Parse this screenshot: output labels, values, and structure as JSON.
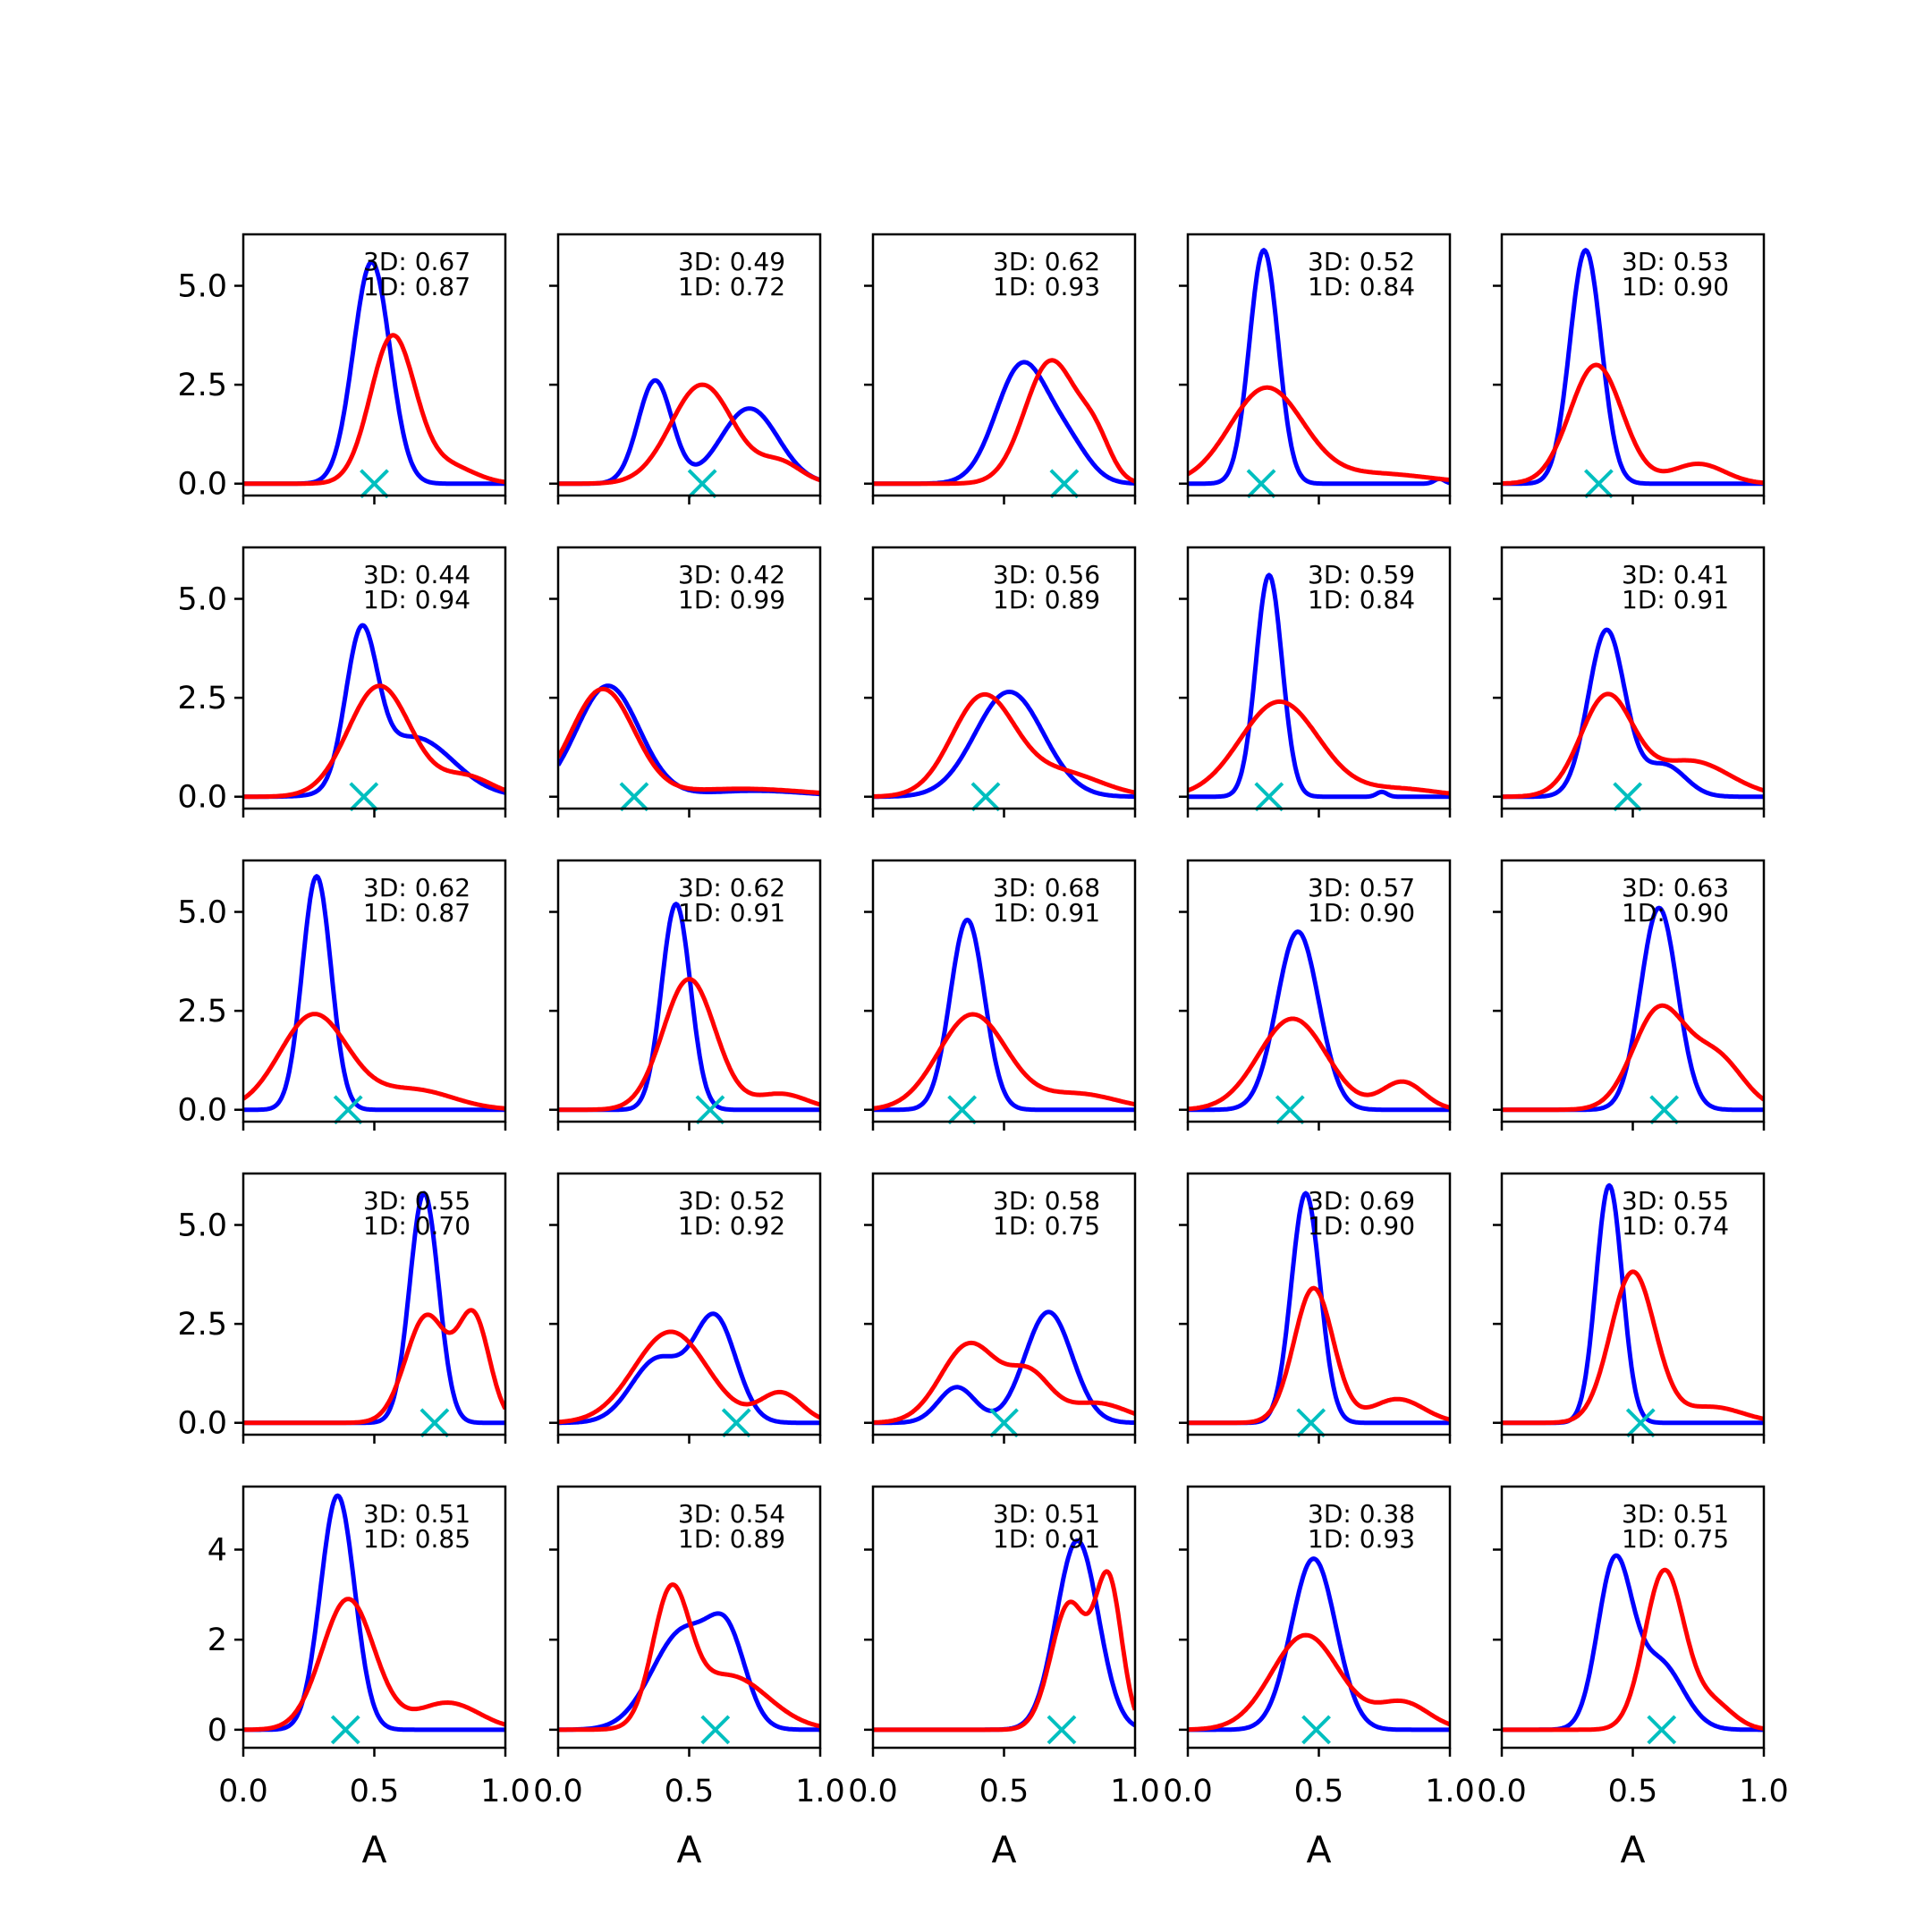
{
  "chart_data": {
    "type": "line",
    "layout": {
      "rows": 5,
      "cols": 5
    },
    "xlabel": "A",
    "xlim": [
      0,
      1
    ],
    "xticks": [
      "0.0",
      "0.5",
      "1.0"
    ],
    "row_yaxes": [
      {
        "ylim": [
          -0.3,
          6.3
        ],
        "ticks": [
          0,
          2.5,
          5
        ],
        "tick_labels": [
          "0.0",
          "2.5",
          "5.0"
        ]
      },
      {
        "ylim": [
          -0.3,
          6.3
        ],
        "ticks": [
          0,
          2.5,
          5
        ],
        "tick_labels": [
          "0.0",
          "2.5",
          "5.0"
        ]
      },
      {
        "ylim": [
          -0.3,
          6.3
        ],
        "ticks": [
          0,
          2.5,
          5
        ],
        "tick_labels": [
          "0.0",
          "2.5",
          "5.0"
        ]
      },
      {
        "ylim": [
          -0.3,
          6.3
        ],
        "ticks": [
          0,
          2.5,
          5
        ],
        "tick_labels": [
          "0.0",
          "2.5",
          "5.0"
        ]
      },
      {
        "ylim": [
          -0.4,
          5.4
        ],
        "ticks": [
          0,
          2,
          4
        ],
        "tick_labels": [
          "0",
          "2",
          "4"
        ]
      }
    ],
    "colors": {
      "blue": "#0000ff",
      "red": "#ff0000",
      "marker": "#00bfbf"
    },
    "panels": [
      {
        "label_3d": "3D: 0.67",
        "label_1d": "1D: 0.87",
        "marker_x": 0.5,
        "blue": [
          {
            "mu": 0.49,
            "sd": 0.07,
            "h": 5.6
          }
        ],
        "red": [
          {
            "mu": 0.57,
            "sd": 0.085,
            "h": 3.7
          },
          {
            "mu": 0.78,
            "sd": 0.1,
            "h": 0.45
          }
        ]
      },
      {
        "label_3d": "3D: 0.49",
        "label_1d": "1D: 0.72",
        "marker_x": 0.55,
        "blue": [
          {
            "mu": 0.37,
            "sd": 0.065,
            "h": 2.6
          },
          {
            "mu": 0.73,
            "sd": 0.11,
            "h": 1.9
          }
        ],
        "red": [
          {
            "mu": 0.55,
            "sd": 0.12,
            "h": 2.5
          },
          {
            "mu": 0.85,
            "sd": 0.08,
            "h": 0.5
          }
        ]
      },
      {
        "label_3d": "3D: 0.62",
        "label_1d": "1D: 0.93",
        "marker_x": 0.73,
        "blue": [
          {
            "mu": 0.57,
            "sd": 0.1,
            "h": 3.0
          },
          {
            "mu": 0.75,
            "sd": 0.08,
            "h": 0.8
          }
        ],
        "red": [
          {
            "mu": 0.68,
            "sd": 0.1,
            "h": 3.1
          },
          {
            "mu": 0.85,
            "sd": 0.06,
            "h": 0.9
          }
        ]
      },
      {
        "label_3d": "3D: 0.52",
        "label_1d": "1D: 0.84",
        "marker_x": 0.28,
        "blue": [
          {
            "mu": 0.29,
            "sd": 0.055,
            "h": 5.9
          },
          {
            "mu": 0.96,
            "sd": 0.02,
            "h": 0.12
          }
        ],
        "red": [
          {
            "mu": 0.3,
            "sd": 0.14,
            "h": 2.4
          },
          {
            "mu": 0.72,
            "sd": 0.2,
            "h": 0.25
          }
        ]
      },
      {
        "label_3d": "3D: 0.53",
        "label_1d": "1D: 0.90",
        "marker_x": 0.37,
        "blue": [
          {
            "mu": 0.32,
            "sd": 0.06,
            "h": 5.9
          }
        ],
        "red": [
          {
            "mu": 0.36,
            "sd": 0.1,
            "h": 3.0
          },
          {
            "mu": 0.75,
            "sd": 0.1,
            "h": 0.5
          }
        ]
      },
      {
        "label_3d": "3D: 0.44",
        "label_1d": "1D: 0.94",
        "marker_x": 0.46,
        "blue": [
          {
            "mu": 0.45,
            "sd": 0.06,
            "h": 3.7
          },
          {
            "mu": 0.65,
            "sd": 0.15,
            "h": 1.5
          }
        ],
        "red": [
          {
            "mu": 0.52,
            "sd": 0.12,
            "h": 2.8
          },
          {
            "mu": 0.85,
            "sd": 0.1,
            "h": 0.5
          }
        ]
      },
      {
        "label_3d": "3D: 0.42",
        "label_1d": "1D: 0.99",
        "marker_x": 0.29,
        "blue": [
          {
            "mu": 0.19,
            "sd": 0.12,
            "h": 2.8
          },
          {
            "mu": 0.75,
            "sd": 0.2,
            "h": 0.15
          }
        ],
        "red": [
          {
            "mu": 0.17,
            "sd": 0.12,
            "h": 2.7
          },
          {
            "mu": 0.7,
            "sd": 0.25,
            "h": 0.2
          }
        ]
      },
      {
        "label_3d": "3D: 0.56",
        "label_1d": "1D: 0.89",
        "marker_x": 0.43,
        "blue": [
          {
            "mu": 0.52,
            "sd": 0.13,
            "h": 2.65
          }
        ],
        "red": [
          {
            "mu": 0.42,
            "sd": 0.12,
            "h": 2.5
          },
          {
            "mu": 0.72,
            "sd": 0.15,
            "h": 0.6
          }
        ]
      },
      {
        "label_3d": "3D: 0.59",
        "label_1d": "1D: 0.84",
        "marker_x": 0.31,
        "blue": [
          {
            "mu": 0.31,
            "sd": 0.05,
            "h": 5.6
          },
          {
            "mu": 0.74,
            "sd": 0.02,
            "h": 0.12
          }
        ],
        "red": [
          {
            "mu": 0.35,
            "sd": 0.15,
            "h": 2.4
          },
          {
            "mu": 0.8,
            "sd": 0.15,
            "h": 0.2
          }
        ]
      },
      {
        "label_3d": "3D: 0.41",
        "label_1d": "1D: 0.91",
        "marker_x": 0.48,
        "blue": [
          {
            "mu": 0.4,
            "sd": 0.07,
            "h": 4.2
          },
          {
            "mu": 0.62,
            "sd": 0.08,
            "h": 0.8
          }
        ],
        "red": [
          {
            "mu": 0.4,
            "sd": 0.1,
            "h": 2.5
          },
          {
            "mu": 0.72,
            "sd": 0.15,
            "h": 0.9
          }
        ]
      },
      {
        "label_3d": "3D: 0.62",
        "label_1d": "1D: 0.87",
        "marker_x": 0.4,
        "blue": [
          {
            "mu": 0.28,
            "sd": 0.055,
            "h": 5.9
          }
        ],
        "red": [
          {
            "mu": 0.27,
            "sd": 0.13,
            "h": 2.4
          },
          {
            "mu": 0.65,
            "sd": 0.15,
            "h": 0.5
          }
        ]
      },
      {
        "label_3d": "3D: 0.62",
        "label_1d": "1D: 0.91",
        "marker_x": 0.58,
        "blue": [
          {
            "mu": 0.45,
            "sd": 0.055,
            "h": 5.2
          }
        ],
        "red": [
          {
            "mu": 0.5,
            "sd": 0.1,
            "h": 3.3
          },
          {
            "mu": 0.85,
            "sd": 0.1,
            "h": 0.4
          }
        ]
      },
      {
        "label_3d": "3D: 0.68",
        "label_1d": "1D: 0.91",
        "marker_x": 0.34,
        "blue": [
          {
            "mu": 0.36,
            "sd": 0.065,
            "h": 4.8
          }
        ],
        "red": [
          {
            "mu": 0.38,
            "sd": 0.13,
            "h": 2.4
          },
          {
            "mu": 0.78,
            "sd": 0.15,
            "h": 0.4
          }
        ]
      },
      {
        "label_3d": "3D: 0.57",
        "label_1d": "1D: 0.90",
        "marker_x": 0.39,
        "blue": [
          {
            "mu": 0.42,
            "sd": 0.08,
            "h": 4.5
          }
        ],
        "red": [
          {
            "mu": 0.4,
            "sd": 0.13,
            "h": 2.3
          },
          {
            "mu": 0.82,
            "sd": 0.08,
            "h": 0.7
          }
        ]
      },
      {
        "label_3d": "3D: 0.63",
        "label_1d": "1D: 0.90",
        "marker_x": 0.62,
        "blue": [
          {
            "mu": 0.6,
            "sd": 0.07,
            "h": 5.1
          }
        ],
        "red": [
          {
            "mu": 0.6,
            "sd": 0.1,
            "h": 2.5
          },
          {
            "mu": 0.82,
            "sd": 0.1,
            "h": 1.3
          }
        ]
      },
      {
        "label_3d": "3D: 0.55",
        "label_1d": "1D: 0.70",
        "marker_x": 0.73,
        "blue": [
          {
            "mu": 0.69,
            "sd": 0.055,
            "h": 5.8
          }
        ],
        "red": [
          {
            "mu": 0.7,
            "sd": 0.08,
            "h": 2.7
          },
          {
            "mu": 0.88,
            "sd": 0.06,
            "h": 2.6
          }
        ]
      },
      {
        "label_3d": "3D: 0.52",
        "label_1d": "1D: 0.92",
        "marker_x": 0.68,
        "blue": [
          {
            "mu": 0.38,
            "sd": 0.1,
            "h": 1.6
          },
          {
            "mu": 0.6,
            "sd": 0.08,
            "h": 2.6
          }
        ],
        "red": [
          {
            "mu": 0.43,
            "sd": 0.14,
            "h": 2.3
          },
          {
            "mu": 0.85,
            "sd": 0.08,
            "h": 0.75
          }
        ]
      },
      {
        "label_3d": "3D: 0.58",
        "label_1d": "1D: 0.75",
        "marker_x": 0.5,
        "blue": [
          {
            "mu": 0.32,
            "sd": 0.07,
            "h": 0.9
          },
          {
            "mu": 0.67,
            "sd": 0.09,
            "h": 2.8
          }
        ],
        "red": [
          {
            "mu": 0.37,
            "sd": 0.11,
            "h": 2.0
          },
          {
            "mu": 0.6,
            "sd": 0.08,
            "h": 1.1
          },
          {
            "mu": 0.85,
            "sd": 0.12,
            "h": 0.5
          }
        ]
      },
      {
        "label_3d": "3D: 0.69",
        "label_1d": "1D: 0.90",
        "marker_x": 0.47,
        "blue": [
          {
            "mu": 0.45,
            "sd": 0.055,
            "h": 5.8
          }
        ],
        "red": [
          {
            "mu": 0.48,
            "sd": 0.075,
            "h": 3.4
          },
          {
            "mu": 0.8,
            "sd": 0.1,
            "h": 0.6
          }
        ]
      },
      {
        "label_3d": "3D: 0.55",
        "label_1d": "1D: 0.74",
        "marker_x": 0.53,
        "blue": [
          {
            "mu": 0.41,
            "sd": 0.05,
            "h": 6.0
          }
        ],
        "red": [
          {
            "mu": 0.5,
            "sd": 0.085,
            "h": 3.8
          },
          {
            "mu": 0.8,
            "sd": 0.12,
            "h": 0.4
          }
        ]
      },
      {
        "label_3d": "3D: 0.51",
        "label_1d": "1D: 0.85",
        "marker_x": 0.39,
        "blue": [
          {
            "mu": 0.36,
            "sd": 0.065,
            "h": 5.2
          }
        ],
        "red": [
          {
            "mu": 0.4,
            "sd": 0.1,
            "h": 2.9
          },
          {
            "mu": 0.78,
            "sd": 0.12,
            "h": 0.6
          }
        ]
      },
      {
        "label_3d": "3D: 0.54",
        "label_1d": "1D: 0.89",
        "marker_x": 0.6,
        "blue": [
          {
            "mu": 0.48,
            "sd": 0.12,
            "h": 2.2
          },
          {
            "mu": 0.65,
            "sd": 0.07,
            "h": 1.6
          }
        ],
        "red": [
          {
            "mu": 0.43,
            "sd": 0.07,
            "h": 2.8
          },
          {
            "mu": 0.65,
            "sd": 0.15,
            "h": 1.2
          }
        ]
      },
      {
        "label_3d": "3D: 0.51",
        "label_1d": "1D: 0.91",
        "marker_x": 0.72,
        "blue": [
          {
            "mu": 0.78,
            "sd": 0.08,
            "h": 4.2
          }
        ],
        "red": [
          {
            "mu": 0.75,
            "sd": 0.07,
            "h": 2.8
          },
          {
            "mu": 0.9,
            "sd": 0.05,
            "h": 3.2
          }
        ]
      },
      {
        "label_3d": "3D: 0.38",
        "label_1d": "1D: 0.93",
        "marker_x": 0.49,
        "blue": [
          {
            "mu": 0.48,
            "sd": 0.085,
            "h": 3.8
          }
        ],
        "red": [
          {
            "mu": 0.45,
            "sd": 0.13,
            "h": 2.1
          },
          {
            "mu": 0.82,
            "sd": 0.1,
            "h": 0.6
          }
        ]
      },
      {
        "label_3d": "3D: 0.51",
        "label_1d": "1D: 0.75",
        "marker_x": 0.61,
        "blue": [
          {
            "mu": 0.43,
            "sd": 0.065,
            "h": 3.6
          },
          {
            "mu": 0.6,
            "sd": 0.09,
            "h": 1.5
          }
        ],
        "red": [
          {
            "mu": 0.62,
            "sd": 0.075,
            "h": 3.5
          },
          {
            "mu": 0.8,
            "sd": 0.08,
            "h": 0.6
          }
        ]
      }
    ]
  }
}
